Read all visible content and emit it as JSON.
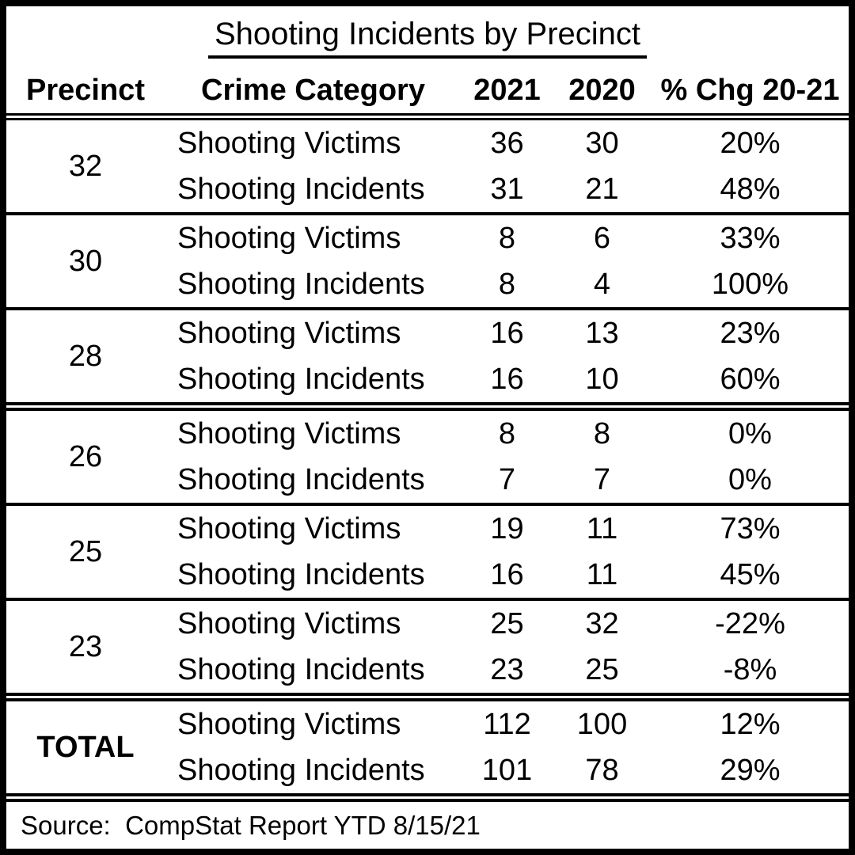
{
  "title": "Shooting Incidents by Precinct",
  "columns": [
    "Precinct",
    "Crime Category",
    "2021",
    "2020",
    "% Chg 20-21"
  ],
  "groups": [
    {
      "precinct": "32",
      "rows": [
        {
          "category": "Shooting Victims",
          "v2021": "36",
          "v2020": "30",
          "chg": "20%"
        },
        {
          "category": "Shooting Incidents",
          "v2021": "31",
          "v2020": "21",
          "chg": "48%"
        }
      ]
    },
    {
      "precinct": "30",
      "rows": [
        {
          "category": "Shooting Victims",
          "v2021": "8",
          "v2020": "6",
          "chg": "33%"
        },
        {
          "category": "Shooting Incidents",
          "v2021": "8",
          "v2020": "4",
          "chg": "100%"
        }
      ]
    },
    {
      "precinct": "28",
      "rows": [
        {
          "category": "Shooting Victims",
          "v2021": "16",
          "v2020": "13",
          "chg": "23%"
        },
        {
          "category": "Shooting Incidents",
          "v2021": "16",
          "v2020": "10",
          "chg": "60%"
        }
      ]
    },
    {
      "precinct": "26",
      "rows": [
        {
          "category": "Shooting Victims",
          "v2021": "8",
          "v2020": "8",
          "chg": "0%"
        },
        {
          "category": "Shooting Incidents",
          "v2021": "7",
          "v2020": "7",
          "chg": "0%"
        }
      ]
    },
    {
      "precinct": "25",
      "rows": [
        {
          "category": "Shooting Victims",
          "v2021": "19",
          "v2020": "11",
          "chg": "73%"
        },
        {
          "category": "Shooting Incidents",
          "v2021": "16",
          "v2020": "11",
          "chg": "45%"
        }
      ]
    },
    {
      "precinct": "23",
      "rows": [
        {
          "category": "Shooting Victims",
          "v2021": "25",
          "v2020": "32",
          "chg": "-22%"
        },
        {
          "category": "Shooting Incidents",
          "v2021": "23",
          "v2020": "25",
          "chg": "-8%"
        }
      ]
    },
    {
      "precinct": "TOTAL",
      "rows": [
        {
          "category": "Shooting Victims",
          "v2021": "112",
          "v2020": "100",
          "chg": "12%"
        },
        {
          "category": "Shooting Incidents",
          "v2021": "101",
          "v2020": "78",
          "chg": "29%"
        }
      ]
    }
  ],
  "source": "Source:  CompStat Report YTD 8/15/21",
  "colors": {
    "text": "#000000",
    "border": "#000000",
    "background": "#ffffff"
  },
  "chart_data": {
    "type": "table",
    "title": "Shooting Incidents by Precinct",
    "columns": [
      "Precinct",
      "Crime Category",
      "2021",
      "2020",
      "% Chg 20-21"
    ],
    "rows": [
      [
        "32",
        "Shooting Victims",
        36,
        30,
        "20%"
      ],
      [
        "32",
        "Shooting Incidents",
        31,
        21,
        "48%"
      ],
      [
        "30",
        "Shooting Victims",
        8,
        6,
        "33%"
      ],
      [
        "30",
        "Shooting Incidents",
        8,
        4,
        "100%"
      ],
      [
        "28",
        "Shooting Victims",
        16,
        13,
        "23%"
      ],
      [
        "28",
        "Shooting Incidents",
        16,
        10,
        "60%"
      ],
      [
        "26",
        "Shooting Victims",
        8,
        8,
        "0%"
      ],
      [
        "26",
        "Shooting Incidents",
        7,
        7,
        "0%"
      ],
      [
        "25",
        "Shooting Victims",
        19,
        11,
        "73%"
      ],
      [
        "25",
        "Shooting Incidents",
        16,
        11,
        "45%"
      ],
      [
        "23",
        "Shooting Victims",
        25,
        32,
        "-22%"
      ],
      [
        "23",
        "Shooting Incidents",
        23,
        25,
        "-8%"
      ],
      [
        "TOTAL",
        "Shooting Victims",
        112,
        100,
        "12%"
      ],
      [
        "TOTAL",
        "Shooting Incidents",
        101,
        78,
        "29%"
      ]
    ],
    "source": "CompStat Report YTD 8/15/21"
  }
}
